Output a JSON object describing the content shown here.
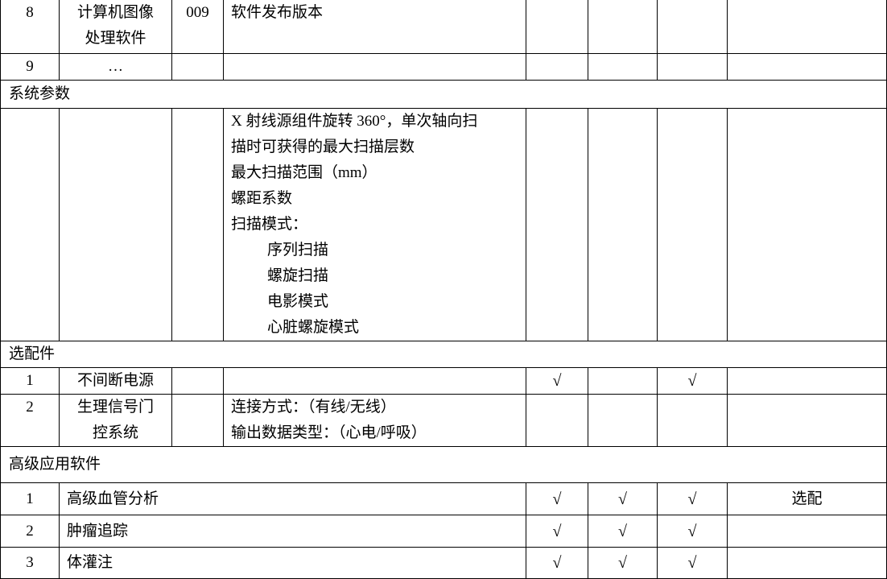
{
  "rows": {
    "r8": {
      "no": "8",
      "name_line1": "计算机图像",
      "name_line2": "处理软件",
      "code": "009",
      "desc": "软件发布版本"
    },
    "r9": {
      "no": "9",
      "name": "…"
    },
    "system_params": {
      "heading": "系统参数",
      "lines": [
        "X 射线源组件旋转 360°，单次轴向扫",
        "描时可获得的最大扫描层数",
        "最大扫描范围（mm）",
        "螺距系数",
        "扫描模式："
      ],
      "modes": [
        "序列扫描",
        "螺旋扫描",
        "电影模式",
        "心脏螺旋模式"
      ]
    },
    "optional": {
      "heading": "选配件",
      "items": [
        {
          "no": "1",
          "name": "不间断电源",
          "c1": "√",
          "c2": "",
          "c3": "√"
        },
        {
          "no": "2",
          "name_line1": "生理信号门",
          "name_line2": "控系统",
          "desc_line1": "连接方式：（有线/无线）",
          "desc_line2": "输出数据类型：（心电/呼吸）"
        }
      ]
    },
    "advanced": {
      "heading": "高级应用软件",
      "items": [
        {
          "no": "1",
          "name": "高级血管分析",
          "c1": "√",
          "c2": "√",
          "c3": "√",
          "note": "选配"
        },
        {
          "no": "2",
          "name": "肿瘤追踪",
          "c1": "√",
          "c2": "√",
          "c3": "√",
          "note": ""
        },
        {
          "no": "3",
          "name": "体灌注",
          "c1": "√",
          "c2": "√",
          "c3": "√",
          "note": ""
        }
      ]
    }
  }
}
